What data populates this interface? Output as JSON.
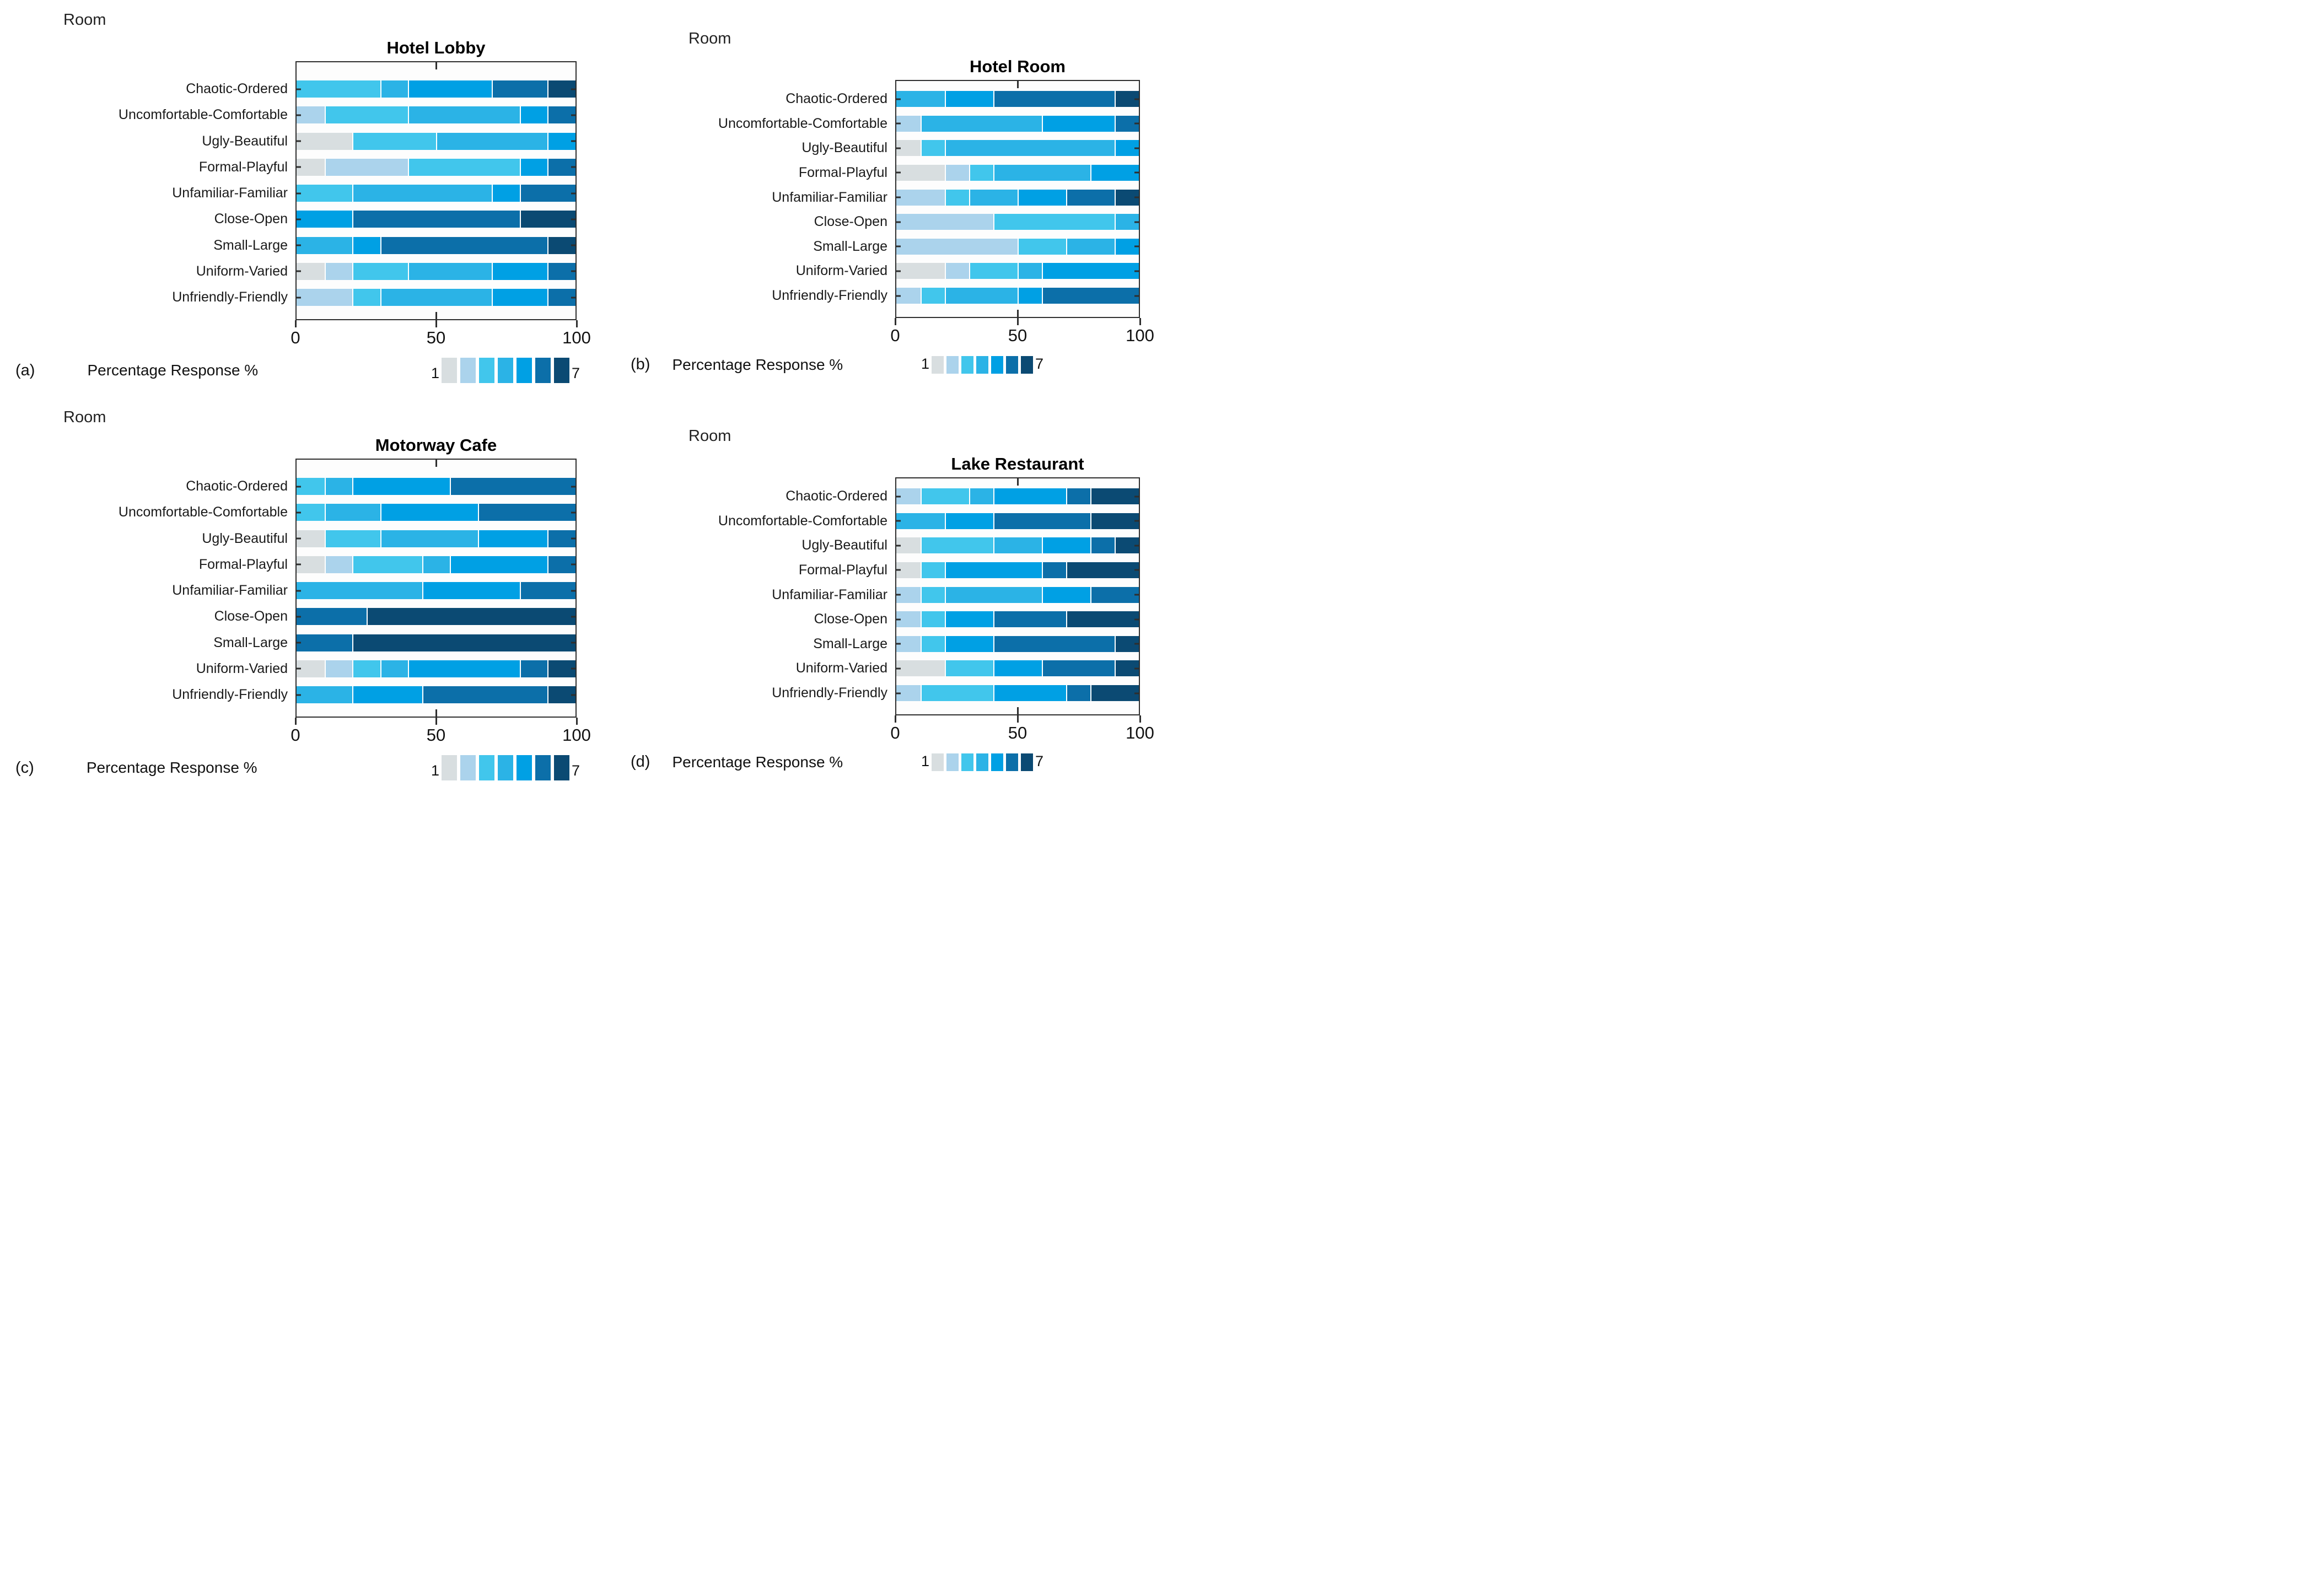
{
  "figure": {
    "background": "#ffffff",
    "text_color": "#1a1a1a",
    "border_color": "#2e2e2e"
  },
  "palette": [
    "#d8dee0",
    "#abd3ec",
    "#41c6ec",
    "#2bb3e6",
    "#00a0e4",
    "#0c6fa9",
    "#0b4a73"
  ],
  "chart_data": [
    {
      "id": "a",
      "label": "(a)",
      "title": "Hotel Lobby",
      "type": "bar",
      "stacked": true,
      "orientation": "horizontal",
      "xlabel": "Percentage Response %",
      "ylabel": "Room",
      "xlim": [
        0,
        100
      ],
      "xticks": [
        "0",
        "50",
        "100"
      ],
      "legend_min": "1",
      "legend_max": "7",
      "legend_position": "bottom-right",
      "grid": false,
      "categories": [
        "Chaotic-Ordered",
        "Uncomfortable-Comfortable",
        "Ugly-Beautiful",
        "Formal-Playful",
        "Unfamiliar-Familiar",
        "Close-Open",
        "Small-Large",
        "Uniform-Varied",
        "Unfriendly-Friendly"
      ],
      "series": [
        {
          "name": "1",
          "values": [
            0,
            0,
            20,
            10,
            0,
            0,
            0,
            10,
            0
          ]
        },
        {
          "name": "2",
          "values": [
            0,
            10,
            0,
            30,
            0,
            0,
            0,
            10,
            20
          ]
        },
        {
          "name": "3",
          "values": [
            30,
            30,
            30,
            40,
            20,
            0,
            0,
            20,
            10
          ]
        },
        {
          "name": "4",
          "values": [
            10,
            40,
            40,
            0,
            50,
            0,
            20,
            30,
            40
          ]
        },
        {
          "name": "5",
          "values": [
            30,
            10,
            10,
            10,
            10,
            20,
            10,
            20,
            20
          ]
        },
        {
          "name": "6",
          "values": [
            20,
            10,
            0,
            10,
            20,
            60,
            60,
            10,
            10
          ]
        },
        {
          "name": "7",
          "values": [
            10,
            0,
            0,
            0,
            0,
            20,
            10,
            0,
            0
          ]
        }
      ]
    },
    {
      "id": "b",
      "label": "(b)",
      "title": "Hotel Room",
      "type": "bar",
      "stacked": true,
      "orientation": "horizontal",
      "xlabel": "Percentage Response %",
      "ylabel": "Room",
      "xlim": [
        0,
        100
      ],
      "xticks": [
        "0",
        "50",
        "100"
      ],
      "legend_min": "1",
      "legend_max": "7",
      "legend_position": "bottom-right",
      "grid": false,
      "categories": [
        "Chaotic-Ordered",
        "Uncomfortable-Comfortable",
        "Ugly-Beautiful",
        "Formal-Playful",
        "Unfamiliar-Familiar",
        "Close-Open",
        "Small-Large",
        "Uniform-Varied",
        "Unfriendly-Friendly"
      ],
      "series": [
        {
          "name": "1",
          "values": [
            0,
            0,
            10,
            20,
            0,
            0,
            0,
            20,
            0
          ]
        },
        {
          "name": "2",
          "values": [
            0,
            10,
            0,
            10,
            20,
            40,
            50,
            10,
            10
          ]
        },
        {
          "name": "3",
          "values": [
            0,
            0,
            10,
            10,
            10,
            50,
            20,
            20,
            10
          ]
        },
        {
          "name": "4",
          "values": [
            20,
            50,
            70,
            40,
            20,
            10,
            20,
            10,
            30
          ]
        },
        {
          "name": "5",
          "values": [
            20,
            30,
            10,
            20,
            20,
            0,
            10,
            40,
            10
          ]
        },
        {
          "name": "6",
          "values": [
            50,
            10,
            0,
            0,
            20,
            0,
            0,
            0,
            40
          ]
        },
        {
          "name": "7",
          "values": [
            10,
            0,
            0,
            0,
            10,
            0,
            0,
            0,
            0
          ]
        }
      ]
    },
    {
      "id": "c",
      "label": "(c)",
      "title": "Motorway Cafe",
      "type": "bar",
      "stacked": true,
      "orientation": "horizontal",
      "xlabel": "Percentage Response %",
      "ylabel": "Room",
      "xlim": [
        0,
        100
      ],
      "xticks": [
        "0",
        "50",
        "100"
      ],
      "legend_min": "1",
      "legend_max": "7",
      "legend_position": "bottom-right",
      "grid": false,
      "categories": [
        "Chaotic-Ordered",
        "Uncomfortable-Comfortable",
        "Ugly-Beautiful",
        "Formal-Playful",
        "Unfamiliar-Familiar",
        "Close-Open",
        "Small-Large",
        "Uniform-Varied",
        "Unfriendly-Friendly"
      ],
      "series": [
        {
          "name": "1",
          "values": [
            0,
            0,
            10,
            10,
            0,
            0,
            0,
            10,
            0
          ]
        },
        {
          "name": "2",
          "values": [
            0,
            0,
            0,
            10,
            0,
            0,
            0,
            10,
            0
          ]
        },
        {
          "name": "3",
          "values": [
            10,
            10,
            20,
            25,
            0,
            0,
            0,
            10,
            0
          ]
        },
        {
          "name": "4",
          "values": [
            10,
            20,
            35,
            10,
            45,
            0,
            0,
            10,
            20
          ]
        },
        {
          "name": "5",
          "values": [
            35,
            35,
            25,
            35,
            35,
            0,
            0,
            40,
            25
          ]
        },
        {
          "name": "6",
          "values": [
            45,
            35,
            10,
            10,
            20,
            25,
            20,
            10,
            45
          ]
        },
        {
          "name": "7",
          "values": [
            0,
            0,
            0,
            0,
            0,
            75,
            80,
            10,
            10
          ]
        }
      ]
    },
    {
      "id": "d",
      "label": "(d)",
      "title": "Lake Restaurant",
      "type": "bar",
      "stacked": true,
      "orientation": "horizontal",
      "xlabel": "Percentage Response %",
      "ylabel": "Room",
      "xlim": [
        0,
        100
      ],
      "xticks": [
        "0",
        "50",
        "100"
      ],
      "legend_min": "1",
      "legend_max": "7",
      "legend_position": "bottom-right",
      "grid": false,
      "categories": [
        "Chaotic-Ordered",
        "Uncomfortable-Comfortable",
        "Ugly-Beautiful",
        "Formal-Playful",
        "Unfamiliar-Familiar",
        "Close-Open",
        "Small-Large",
        "Uniform-Varied",
        "Unfriendly-Friendly"
      ],
      "series": [
        {
          "name": "1",
          "values": [
            0,
            0,
            10,
            10,
            0,
            0,
            0,
            20,
            0
          ]
        },
        {
          "name": "2",
          "values": [
            10,
            0,
            0,
            0,
            10,
            10,
            10,
            0,
            10
          ]
        },
        {
          "name": "3",
          "values": [
            20,
            0,
            30,
            10,
            10,
            10,
            10,
            20,
            30
          ]
        },
        {
          "name": "4",
          "values": [
            10,
            20,
            20,
            0,
            40,
            0,
            0,
            0,
            0
          ]
        },
        {
          "name": "5",
          "values": [
            30,
            20,
            20,
            40,
            20,
            20,
            20,
            20,
            30
          ]
        },
        {
          "name": "6",
          "values": [
            10,
            40,
            10,
            10,
            20,
            30,
            50,
            30,
            10
          ]
        },
        {
          "name": "7",
          "values": [
            20,
            20,
            10,
            30,
            0,
            30,
            10,
            10,
            20
          ]
        }
      ]
    }
  ]
}
